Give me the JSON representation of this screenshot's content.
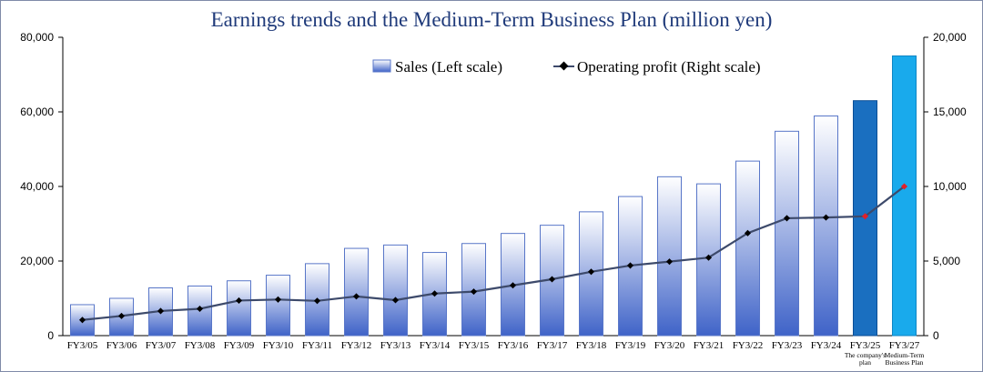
{
  "chart_data": {
    "type": "bar",
    "title": "Earnings trends and the Medium-Term Business Plan (million yen)",
    "categories": [
      "FY3/05",
      "FY3/06",
      "FY3/07",
      "FY3/08",
      "FY3/09",
      "FY3/10",
      "FY3/11",
      "FY3/12",
      "FY3/13",
      "FY3/14",
      "FY3/15",
      "FY3/16",
      "FY3/17",
      "FY3/18",
      "FY3/19",
      "FY3/20",
      "FY3/21",
      "FY3/22",
      "FY3/23",
      "FY3/24",
      "FY3/25",
      "FY3/27"
    ],
    "category_notes": {
      "FY3/25": [
        "The company's",
        "plan"
      ],
      "FY3/27": [
        "Medium-Term",
        "Business Plan"
      ]
    },
    "series": [
      {
        "name": "Sales (Left scale)",
        "type": "bar",
        "axis": "left",
        "values": [
          8300,
          10000,
          12800,
          13300,
          14700,
          16200,
          19300,
          23400,
          24300,
          22300,
          24700,
          27400,
          29600,
          33200,
          37300,
          42600,
          40700,
          46800,
          54800,
          58900,
          63000,
          75000
        ]
      },
      {
        "name": "Operating profit (Right scale)",
        "type": "line",
        "axis": "right",
        "values": [
          1050,
          1320,
          1650,
          1800,
          2350,
          2420,
          2330,
          2630,
          2380,
          2820,
          2950,
          3370,
          3780,
          4280,
          4700,
          4960,
          5230,
          6870,
          7870,
          7920,
          8000,
          10000
        ]
      }
    ],
    "yaxis_left": {
      "min": 0,
      "max": 80000,
      "ticks": [
        "0",
        "20,000",
        "40,000",
        "60,000",
        "80,000"
      ],
      "tick_values": [
        0,
        20000,
        40000,
        60000,
        80000
      ]
    },
    "yaxis_right": {
      "min": 0,
      "max": 20000,
      "ticks": [
        "0",
        "5,000",
        "10,000",
        "15,000",
        "20,000"
      ],
      "tick_values": [
        0,
        5000,
        10000,
        15000,
        20000
      ]
    },
    "grid": false,
    "legend_position": "top-center",
    "colors": {
      "bar_top": "#ffffff",
      "bar_bottom": "#3f63c8",
      "bar_border": "#5876c8",
      "bar_plan": "#1a6fc0",
      "bar_plan_border": "#0b4e96",
      "bar_midterm": "#19aaec",
      "bar_midterm_border": "#0f86c4",
      "line": "#3d4a6b",
      "marker": "#000000",
      "marker_plan": "#e0202a",
      "title": "#1f3a7a"
    }
  }
}
